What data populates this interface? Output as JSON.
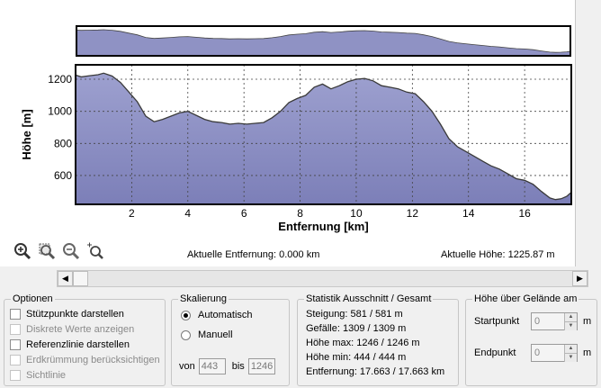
{
  "chart_data": {
    "type": "area",
    "xlabel": "Entfernung [km]",
    "ylabel": "Höhe [m]",
    "xlim": [
      0,
      17.663
    ],
    "ylim": [
      420,
      1290
    ],
    "xticks": [
      2,
      4,
      6,
      8,
      10,
      12,
      14,
      16
    ],
    "yticks": [
      600,
      800,
      1000,
      1200
    ],
    "grid": true,
    "fill_color": "#8f92c4",
    "line_color": "#3a3a3a",
    "x": [
      0,
      0.2,
      0.5,
      0.8,
      1.0,
      1.3,
      1.6,
      1.9,
      2.2,
      2.5,
      2.8,
      3.1,
      3.4,
      3.7,
      4.0,
      4.3,
      4.6,
      4.9,
      5.2,
      5.5,
      5.8,
      6.1,
      6.4,
      6.7,
      7.0,
      7.3,
      7.6,
      7.9,
      8.2,
      8.5,
      8.8,
      9.1,
      9.4,
      9.7,
      10.0,
      10.3,
      10.6,
      10.9,
      11.2,
      11.5,
      11.8,
      12.1,
      12.4,
      12.7,
      13.0,
      13.3,
      13.6,
      13.9,
      14.2,
      14.5,
      14.8,
      15.1,
      15.4,
      15.7,
      16.0,
      16.3,
      16.6,
      16.9,
      17.1,
      17.3,
      17.5,
      17.663
    ],
    "y": [
      1226,
      1215,
      1222,
      1228,
      1238,
      1220,
      1180,
      1120,
      1060,
      970,
      935,
      950,
      970,
      990,
      1000,
      975,
      950,
      935,
      930,
      920,
      925,
      920,
      925,
      930,
      960,
      1000,
      1055,
      1080,
      1100,
      1150,
      1170,
      1140,
      1160,
      1185,
      1200,
      1205,
      1190,
      1160,
      1150,
      1140,
      1120,
      1110,
      1060,
      1000,
      920,
      830,
      780,
      750,
      720,
      690,
      660,
      640,
      610,
      580,
      570,
      545,
      500,
      460,
      450,
      455,
      470,
      495
    ]
  },
  "toolbar": {
    "icons": [
      "zoom-in-icon",
      "zoom-window-icon",
      "zoom-out-icon",
      "zoom-fit-icon"
    ]
  },
  "status": {
    "distance": "Aktuelle Entfernung: 0.000 km",
    "height": "Aktuelle Höhe: 1225.87 m"
  },
  "optionen": {
    "title": "Optionen",
    "items": [
      {
        "label": "Stützpunkte darstellen",
        "enabled": true
      },
      {
        "label": "Diskrete Werte anzeigen",
        "enabled": false
      },
      {
        "label": "Referenzlinie darstellen",
        "enabled": true
      },
      {
        "label": "Erdkrümmung berücksichtigen",
        "enabled": false
      },
      {
        "label": "Sichtlinie",
        "enabled": false
      }
    ]
  },
  "skalierung": {
    "title": "Skalierung",
    "auto_label": "Automatisch",
    "manual_label": "Manuell",
    "von_label": "von",
    "bis_label": "bis",
    "von_value": "443",
    "bis_value": "1246"
  },
  "statistik": {
    "title": "Statistik  Ausschnitt / Gesamt",
    "steigung": "Steigung: 581 / 581 m",
    "gefaelle": "Gefälle: 1309 / 1309 m",
    "hoehe_max": "Höhe max: 1246 / 1246 m",
    "hoehe_min": "Höhe min: 444 / 444 m",
    "entfernung": "Entfernung: 17.663 / 17.663 km"
  },
  "hoehe_gelaende": {
    "title": "Höhe über Gelände am",
    "start_label": "Startpunkt",
    "start_value": "0",
    "end_label": "Endpunkt",
    "end_value": "0",
    "unit": "m"
  }
}
